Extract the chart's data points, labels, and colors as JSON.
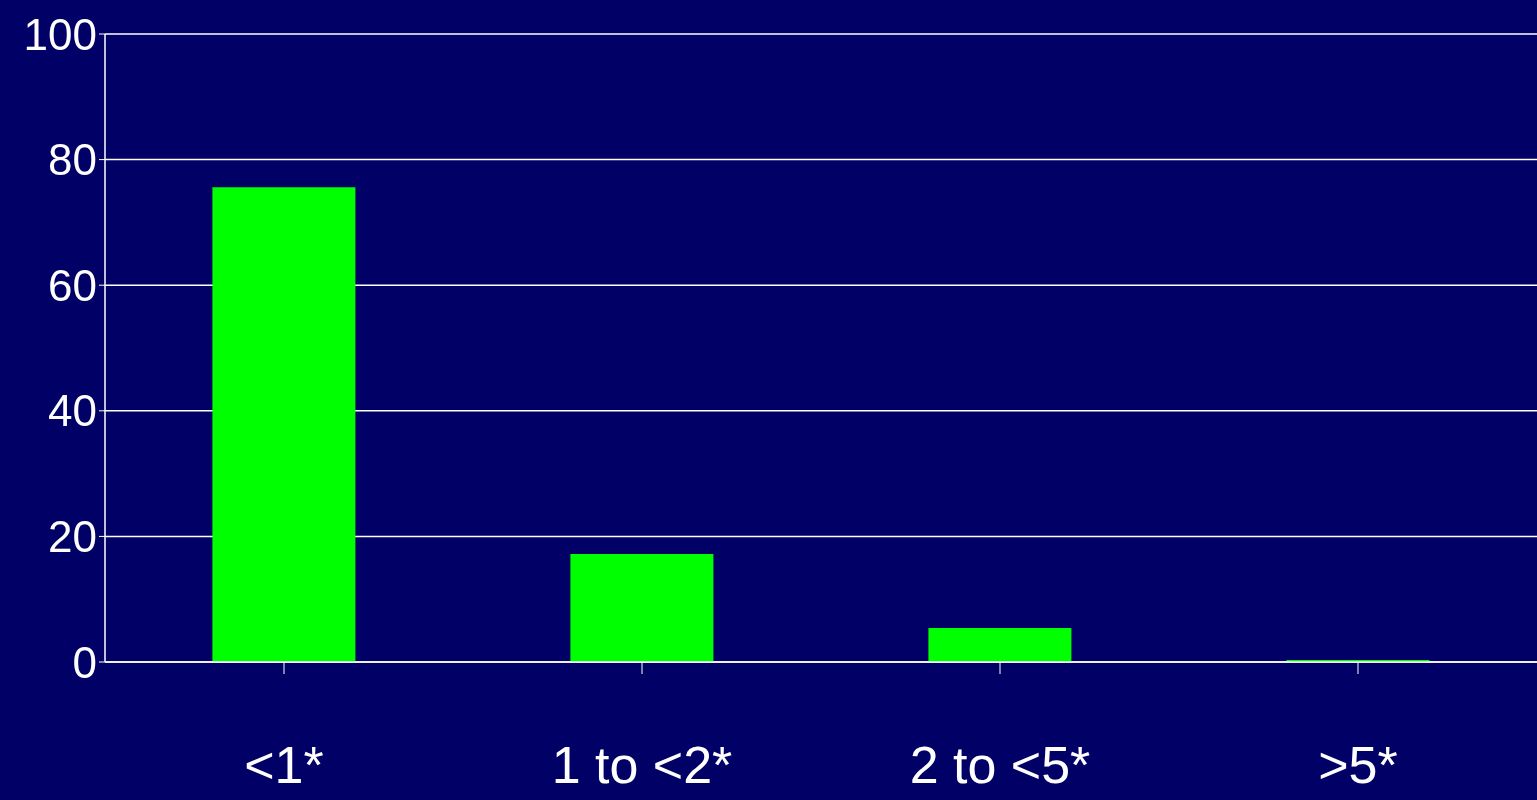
{
  "chart_data": {
    "type": "bar",
    "categories": [
      "<1*",
      "1 to <2*",
      "2 to <5*",
      ">5*"
    ],
    "values": [
      75.6,
      17.2,
      5.4,
      0.3
    ],
    "color": "#00ff00",
    "ylim": [
      0,
      100
    ],
    "yticks": [
      0,
      20,
      40,
      60,
      80,
      100
    ],
    "grid": "y"
  }
}
